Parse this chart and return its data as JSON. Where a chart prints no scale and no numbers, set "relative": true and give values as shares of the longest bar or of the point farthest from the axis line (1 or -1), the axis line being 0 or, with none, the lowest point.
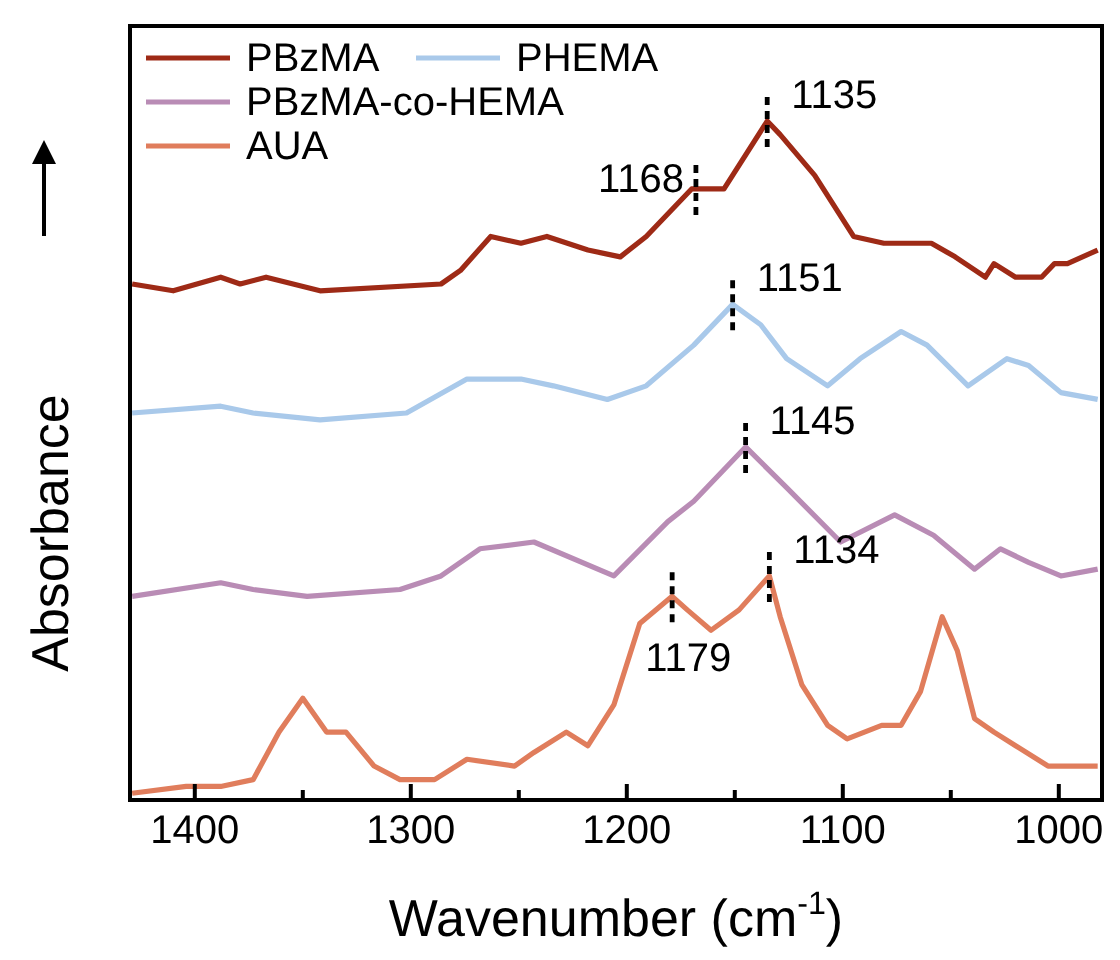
{
  "chart_data": {
    "type": "line",
    "xlabel": "Wavenumber (cm$^{-1}$)",
    "ylabel": "Absorbance",
    "relative": true,
    "legend": "top left",
    "grid": false,
    "marker": "none",
    "line_style": "solid",
    "xlim": [
      1430,
      980
    ],
    "xticks": [
      1400,
      {
        "value": 1350,
        "label": null
      },
      1300,
      {
        "value": 1250,
        "label": null
      },
      1200,
      {
        "value": 1150,
        "label": null
      },
      1100,
      {
        "value": 1050,
        "label": null
      },
      1000
    ],
    "series": [
      {
        "name": "PBzMA",
        "color": "#9e2a16",
        "x": [
          1429,
          1410,
          1388,
          1379,
          1367,
          1342,
          1286,
          1277,
          1263,
          1249,
          1237,
          1218,
          1203,
          1191,
          1170,
          1155,
          1135,
          1129,
          1113,
          1095,
          1081,
          1070,
          1059,
          1048,
          1034,
          1030,
          1020,
          1008,
          1002,
          996,
          982
        ],
        "values": [
          0.76,
          0.75,
          0.77,
          0.76,
          0.77,
          0.75,
          0.76,
          0.78,
          0.83,
          0.82,
          0.83,
          0.81,
          0.8,
          0.83,
          0.9,
          0.9,
          1,
          0.98,
          0.92,
          0.83,
          0.82,
          0.82,
          0.82,
          0.8,
          0.77,
          0.79,
          0.77,
          0.77,
          0.79,
          0.79,
          0.81
        ]
      },
      {
        "name": "PHEMA",
        "color": "#a9c9ea",
        "x": [
          1429,
          1388,
          1373,
          1342,
          1302,
          1274,
          1249,
          1234,
          1209,
          1191,
          1169,
          1151,
          1138,
          1126,
          1107,
          1092,
          1073,
          1061,
          1042,
          1024,
          1014,
          999,
          982
        ],
        "values": [
          0.57,
          0.58,
          0.57,
          0.56,
          0.57,
          0.62,
          0.62,
          0.61,
          0.59,
          0.61,
          0.67,
          0.73,
          0.7,
          0.65,
          0.61,
          0.65,
          0.69,
          0.67,
          0.61,
          0.65,
          0.64,
          0.6,
          0.59
        ]
      },
      {
        "name": "PBzMA-co-HEMA",
        "color": "#b98cb5",
        "x": [
          1429,
          1388,
          1373,
          1348,
          1305,
          1286,
          1268,
          1243,
          1206,
          1181,
          1169,
          1145,
          1126,
          1101,
          1076,
          1058,
          1039,
          1027,
          1014,
          999,
          982
        ],
        "values": [
          0.3,
          0.32,
          0.31,
          0.3,
          0.31,
          0.33,
          0.37,
          0.38,
          0.33,
          0.41,
          0.44,
          0.52,
          0.46,
          0.38,
          0.42,
          0.39,
          0.34,
          0.37,
          0.35,
          0.33,
          0.34
        ]
      },
      {
        "name": "AUA",
        "color": "#e07d5c",
        "x": [
          1429,
          1404,
          1388,
          1373,
          1361,
          1350,
          1339,
          1330,
          1317,
          1305,
          1289,
          1274,
          1252,
          1243,
          1228,
          1218,
          1206,
          1194,
          1179,
          1172,
          1161,
          1148,
          1134,
          1129,
          1119,
          1107,
          1098,
          1082,
          1073,
          1064,
          1054,
          1047,
          1039,
          1030,
          1020,
          1005,
          996,
          982
        ],
        "values": [
          0.01,
          0.02,
          0.02,
          0.03,
          0.1,
          0.15,
          0.1,
          0.1,
          0.05,
          0.03,
          0.03,
          0.06,
          0.05,
          0.07,
          0.1,
          0.08,
          0.14,
          0.26,
          0.3,
          0.28,
          0.25,
          0.28,
          0.33,
          0.27,
          0.17,
          0.11,
          0.09,
          0.11,
          0.11,
          0.16,
          0.27,
          0.22,
          0.12,
          0.1,
          0.08,
          0.05,
          0.05,
          0.05
        ]
      }
    ],
    "annotations": [
      {
        "text": "1168",
        "x": 1168,
        "y": 0.9
      },
      {
        "text": "1135",
        "x": 1135,
        "y": 1
      },
      {
        "text": "1151",
        "x": 1151,
        "y": 0.73
      },
      {
        "text": "1145",
        "x": 1145,
        "y": 0.52
      },
      {
        "text": "1179",
        "x": 1179,
        "y": 0.3
      },
      {
        "text": "1134",
        "x": 1134,
        "y": 0.33
      }
    ]
  }
}
